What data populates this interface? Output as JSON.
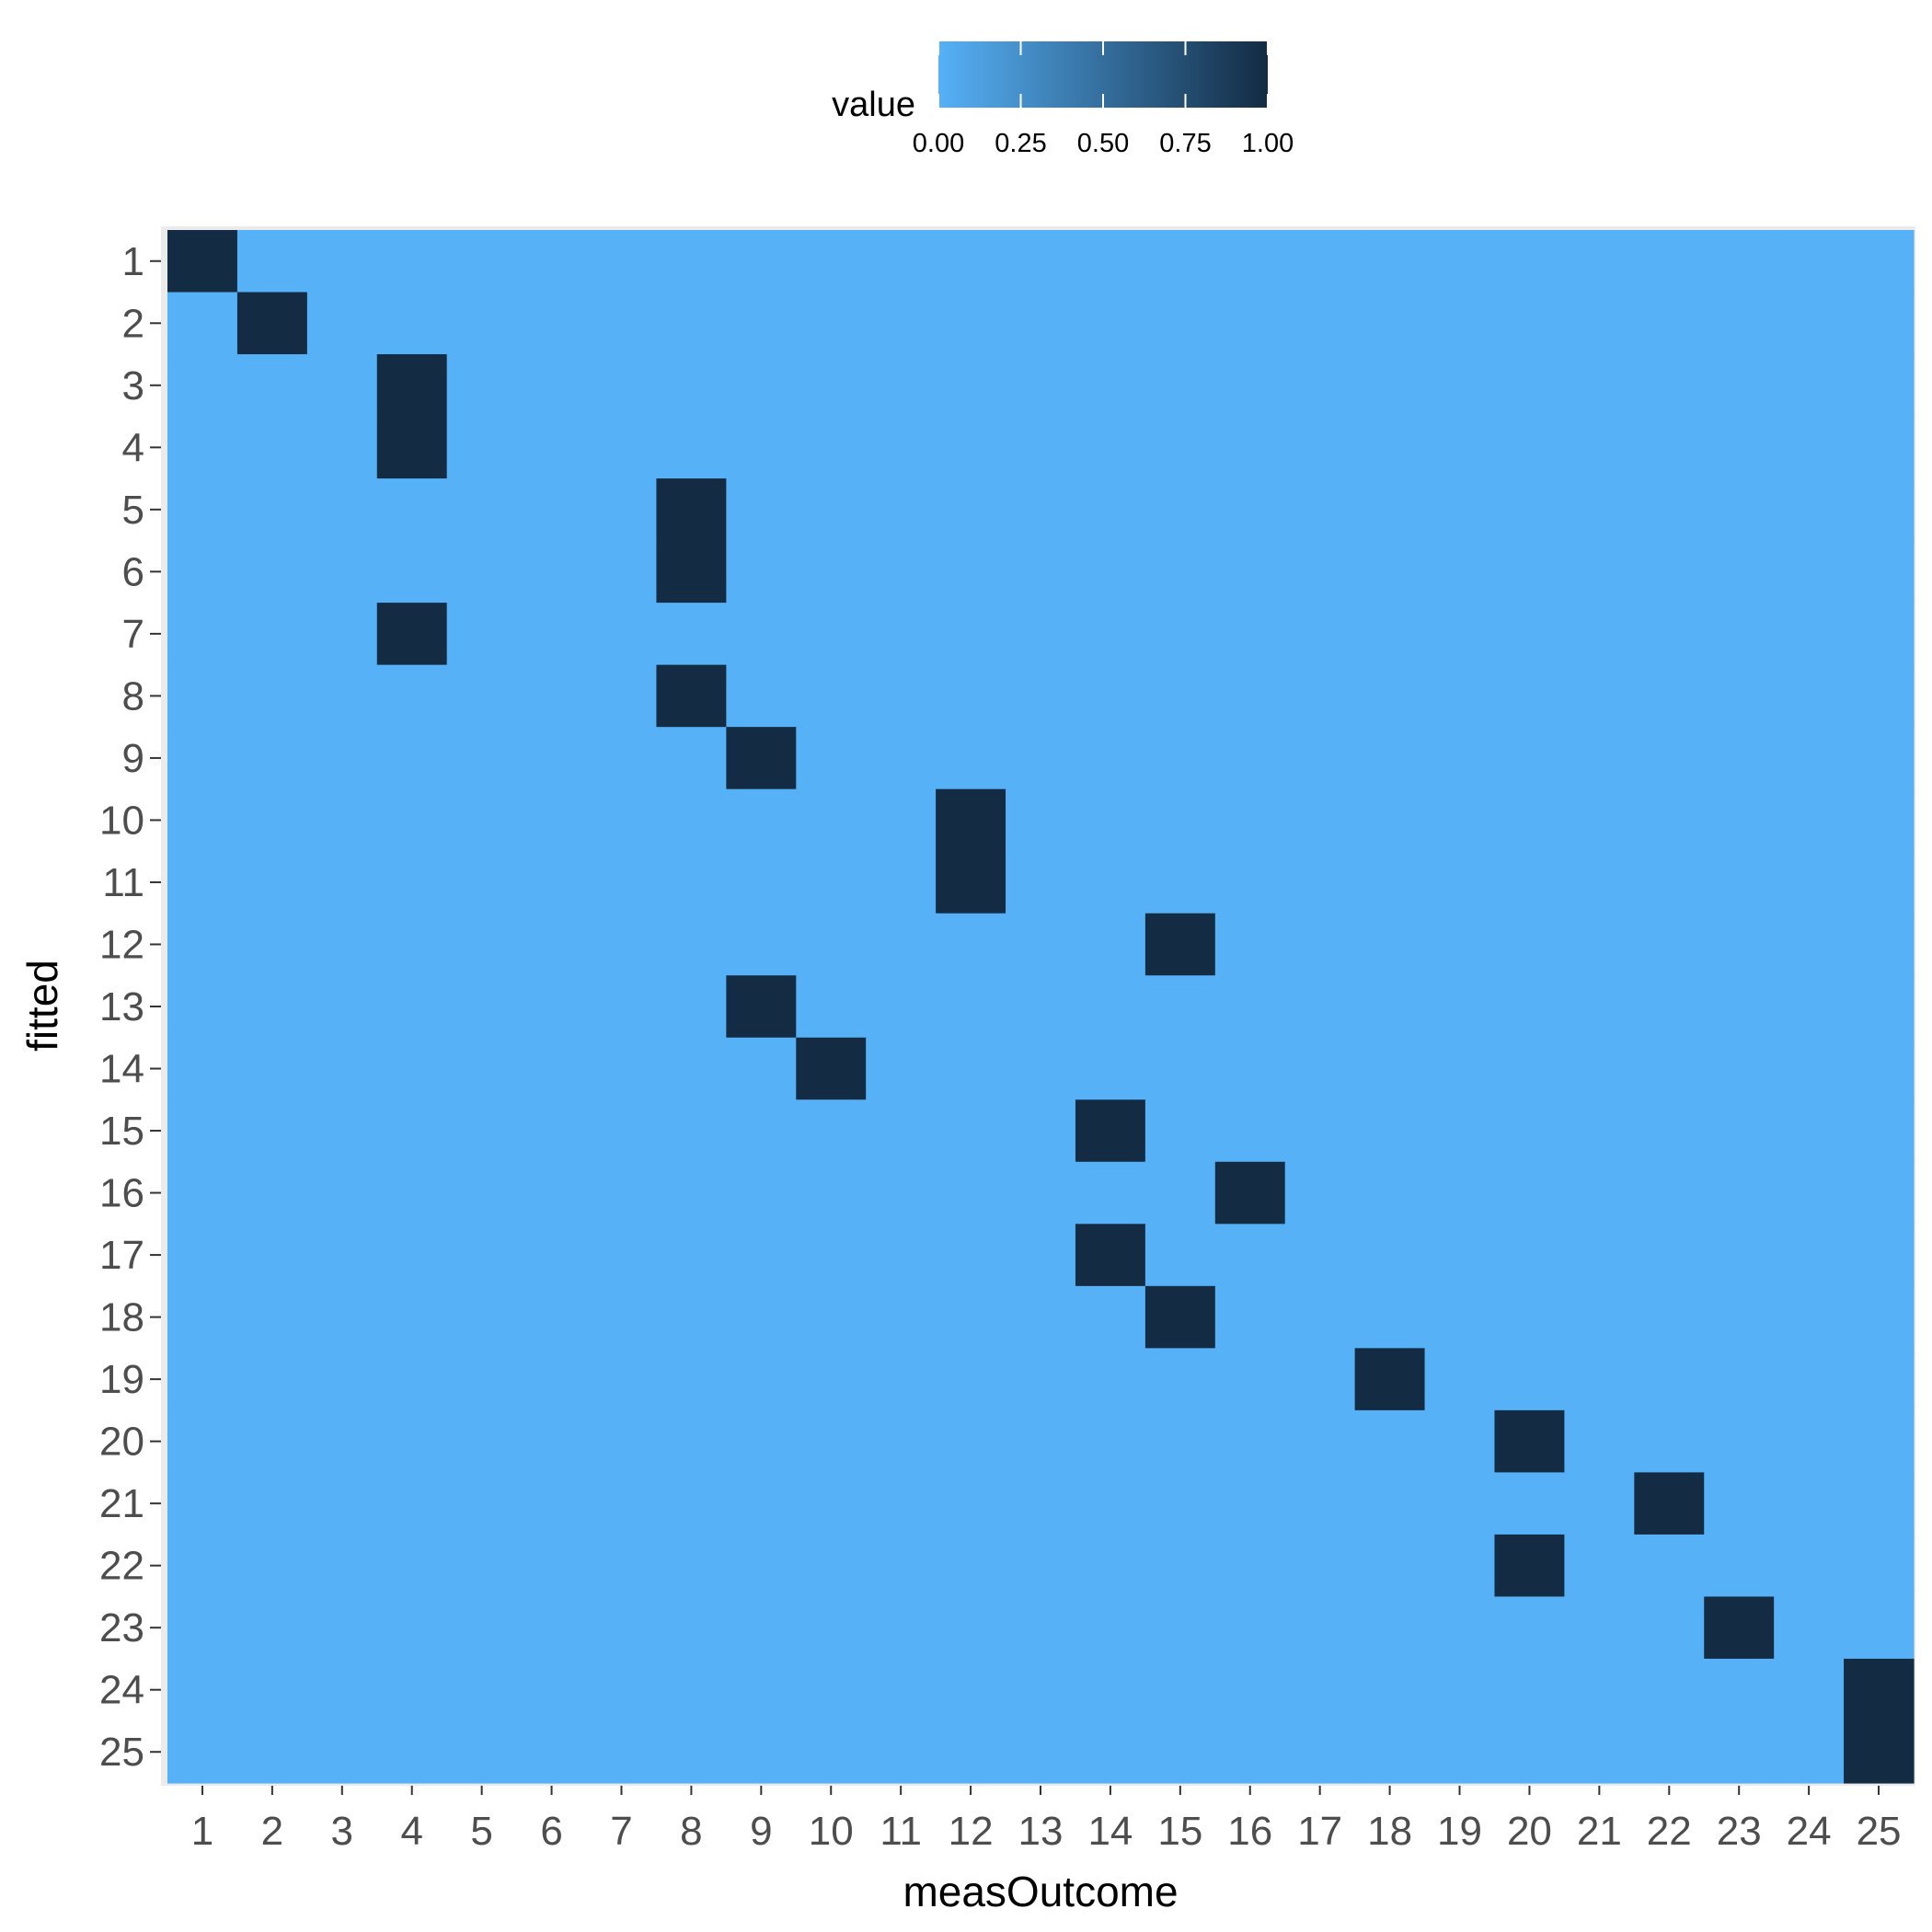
{
  "chart_data": {
    "type": "heatmap",
    "xlabel": "measOutcome",
    "ylabel": "fitted",
    "x_categories": [
      "1",
      "2",
      "3",
      "4",
      "5",
      "6",
      "7",
      "8",
      "9",
      "10",
      "11",
      "12",
      "13",
      "14",
      "15",
      "16",
      "17",
      "18",
      "19",
      "20",
      "21",
      "22",
      "23",
      "24",
      "25"
    ],
    "y_categories": [
      "1",
      "2",
      "3",
      "4",
      "5",
      "6",
      "7",
      "8",
      "9",
      "10",
      "11",
      "12",
      "13",
      "14",
      "15",
      "16",
      "17",
      "18",
      "19",
      "20",
      "21",
      "22",
      "23",
      "24",
      "25"
    ],
    "default_value": 0,
    "cells": [
      {
        "fitted": "1",
        "measOutcome": "1",
        "value": 1
      },
      {
        "fitted": "2",
        "measOutcome": "2",
        "value": 1
      },
      {
        "fitted": "3",
        "measOutcome": "4",
        "value": 1
      },
      {
        "fitted": "4",
        "measOutcome": "4",
        "value": 1
      },
      {
        "fitted": "5",
        "measOutcome": "8",
        "value": 1
      },
      {
        "fitted": "6",
        "measOutcome": "8",
        "value": 1
      },
      {
        "fitted": "7",
        "measOutcome": "4",
        "value": 1
      },
      {
        "fitted": "8",
        "measOutcome": "8",
        "value": 1
      },
      {
        "fitted": "9",
        "measOutcome": "9",
        "value": 1
      },
      {
        "fitted": "10",
        "measOutcome": "12",
        "value": 1
      },
      {
        "fitted": "11",
        "measOutcome": "12",
        "value": 1
      },
      {
        "fitted": "12",
        "measOutcome": "15",
        "value": 1
      },
      {
        "fitted": "13",
        "measOutcome": "9",
        "value": 1
      },
      {
        "fitted": "14",
        "measOutcome": "10",
        "value": 1
      },
      {
        "fitted": "15",
        "measOutcome": "14",
        "value": 1
      },
      {
        "fitted": "16",
        "measOutcome": "16",
        "value": 1
      },
      {
        "fitted": "17",
        "measOutcome": "14",
        "value": 1
      },
      {
        "fitted": "18",
        "measOutcome": "15",
        "value": 1
      },
      {
        "fitted": "19",
        "measOutcome": "18",
        "value": 1
      },
      {
        "fitted": "20",
        "measOutcome": "20",
        "value": 1
      },
      {
        "fitted": "21",
        "measOutcome": "22",
        "value": 1
      },
      {
        "fitted": "22",
        "measOutcome": "20",
        "value": 1
      },
      {
        "fitted": "23",
        "measOutcome": "23",
        "value": 1
      },
      {
        "fitted": "24",
        "measOutcome": "25",
        "value": 1
      },
      {
        "fitted": "25",
        "measOutcome": "25",
        "value": 1
      }
    ],
    "legend": {
      "title": "value",
      "position": "top",
      "ticks": [
        "0.00",
        "0.25",
        "0.50",
        "0.75",
        "1.00"
      ],
      "range": [
        0,
        1
      ],
      "low_color": "#56B1F7",
      "high_color": "#132B43"
    },
    "panel_background": "#EBEBEB",
    "grid": true
  }
}
